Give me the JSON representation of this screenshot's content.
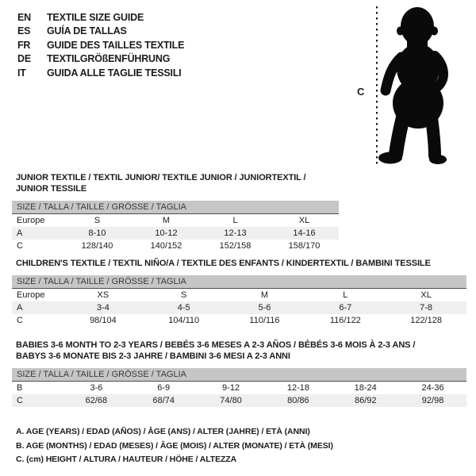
{
  "header": {
    "languages": [
      {
        "code": "EN",
        "label": "TEXTILE SIZE GUIDE"
      },
      {
        "code": "ES",
        "label": "GUÍA DE TALLAS"
      },
      {
        "code": "FR",
        "label": "GUIDE DES TAILLES TEXTILE"
      },
      {
        "code": "DE",
        "label": "TEXTILGRÖßENFÜHRUNG"
      },
      {
        "code": "IT",
        "label": "GUIDA ALLE TAGLIE TESSILI"
      }
    ]
  },
  "figure": {
    "height_label": "C",
    "description": "baby silhouette with dashed height measure line"
  },
  "colors": {
    "header_bar_bg": "#c6c6c6",
    "header_bar_text": "#3a3a3a",
    "header_bar_underline": "#4d4d4d",
    "row_alt_bg": "#efefef",
    "text": "#1c1c1c",
    "silhouette": "#0a0a0a"
  },
  "tables": [
    {
      "title": "JUNIOR TEXTILE / TEXTIL JUNIOR/ TEXTILE JUNIOR / JUNIORTEXTIL / JUNIOR TESSILE",
      "size_header": "SIZE / TALLA / TAILLE / GRÖSSE / TAGLIA",
      "rows": [
        {
          "label": "Europe",
          "values": [
            "S",
            "M",
            "L",
            "XL"
          ],
          "shaded": false
        },
        {
          "label": "A",
          "values": [
            "8-10",
            "10-12",
            "12-13",
            "14-16"
          ],
          "shaded": true
        },
        {
          "label": "C",
          "values": [
            "128/140",
            "140/152",
            "152/158",
            "158/170"
          ],
          "shaded": false
        }
      ]
    },
    {
      "title": "CHILDREN'S TEXTILE / TEXTIL NIÑO/A / TEXTILE DES ENFANTS / KINDERTEXTIL / BAMBINI TESSILE",
      "size_header": "SIZE / TALLA / TAILLE / GRÖSSE / TAGLIA",
      "rows": [
        {
          "label": "Europe",
          "values": [
            "XS",
            "S",
            "M",
            "L",
            "XL"
          ],
          "shaded": false
        },
        {
          "label": "A",
          "values": [
            "3-4",
            "4-5",
            "5-6",
            "6-7",
            "7-8"
          ],
          "shaded": true
        },
        {
          "label": "C",
          "values": [
            "98/104",
            "104/110",
            "110/116",
            "116/122",
            "122/128"
          ],
          "shaded": false
        }
      ]
    },
    {
      "title": "BABIES 3-6 MONTH TO 2-3 YEARS / BEBÉS 3-6 MESES A 2-3 AÑOS / BÉBÉS 3-6 MOIS À 2-3 ANS / BABYS 3-6 MONATE BIS 2-3 JAHRE / BAMBINI 3-6 MESI A 2-3 ANNI",
      "size_header": "SIZE / TALLA / TAILLE / GRÖSSE / TAGLIA",
      "rows": [
        {
          "label": "B",
          "values": [
            "3-6",
            "6-9",
            "9-12",
            "12-18",
            "18-24",
            "24-36"
          ],
          "shaded": false
        },
        {
          "label": "C",
          "values": [
            "62/68",
            "68/74",
            "74/80",
            "80/86",
            "86/92",
            "92/98"
          ],
          "shaded": true
        }
      ]
    }
  ],
  "footnotes": [
    "A. AGE (YEARS) / EDAD (AÑOS) / ÂGE (ANS) / ALTER (JAHRE) / ETÀ (ANNI)",
    "B. AGE (MONTHS) / EDAD (MESES) / ÂGE (MOIS) / ALTER (MONATE) / ETÀ (MESI)",
    "C. (cm) HEIGHT / ALTURA / HAUTEUR / HÖHE / ALTEZZA"
  ]
}
